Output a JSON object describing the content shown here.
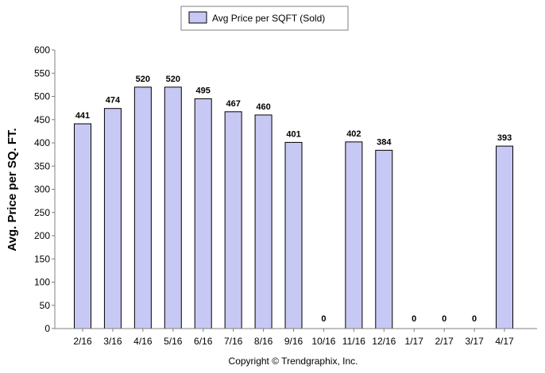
{
  "chart_data": {
    "type": "bar",
    "categories": [
      "2/16",
      "3/16",
      "4/16",
      "5/16",
      "6/16",
      "7/16",
      "8/16",
      "9/16",
      "10/16",
      "11/16",
      "12/16",
      "1/17",
      "2/17",
      "3/17",
      "4/17"
    ],
    "series": [
      {
        "name": "Avg Price per SQFT (Sold)",
        "values": [
          441,
          474,
          520,
          520,
          495,
          467,
          460,
          401,
          0,
          402,
          384,
          0,
          0,
          0,
          393
        ]
      }
    ],
    "data_labels": [
      "441",
      "474",
      "520",
      "520",
      "495",
      "467",
      "460",
      "401",
      "0",
      "402",
      "384",
      "0",
      "0",
      "0",
      "393"
    ],
    "ylabel": "Avg. Price per SQ. FT.",
    "xlabel": "",
    "ylim": [
      0,
      600
    ],
    "yticks": [
      0,
      50,
      100,
      150,
      200,
      250,
      300,
      350,
      400,
      450,
      500,
      550,
      600
    ],
    "legend_position": "top-center",
    "grid": false,
    "colors": {
      "bar_fill": "#c8c8f4",
      "bar_stroke": "#000000",
      "axis": "#7f7f7f"
    }
  },
  "footer": {
    "copyright": "Copyright © Trendgraphix, Inc."
  }
}
